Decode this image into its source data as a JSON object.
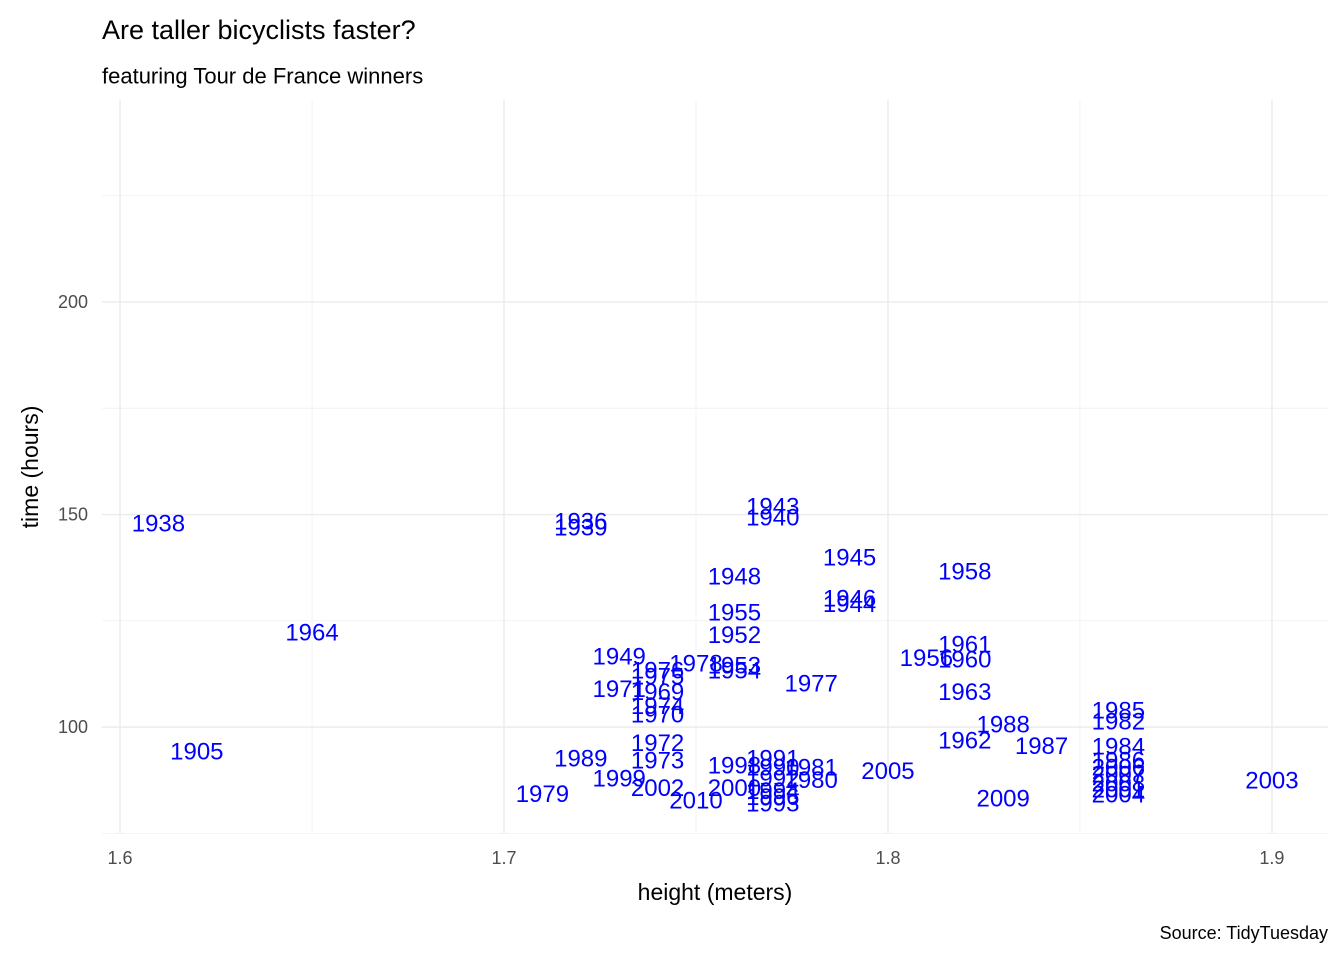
{
  "chart_data": {
    "type": "scatter",
    "title": "Are taller bicyclists faster?",
    "subtitle": "featuring Tour de France winners",
    "x_label": "height (meters)",
    "y_label": "time (hours)",
    "caption": "Source: TidyTuesday",
    "color": "#0000ff",
    "grid": true,
    "xlim": [
      1.5953,
      1.9146
    ],
    "ylim": [
      75.1,
      247.5
    ],
    "xticks": [
      {
        "value": 1.6,
        "label": "1.6"
      },
      {
        "value": 1.7,
        "label": "1.7"
      },
      {
        "value": 1.8,
        "label": "1.8"
      },
      {
        "value": 1.9,
        "label": "1.9"
      }
    ],
    "yticks": [
      100,
      150,
      200
    ],
    "x_minor_ticks": [
      1.65,
      1.75,
      1.85
    ],
    "y_minor_ticks": [
      75,
      125,
      175,
      225
    ],
    "labels": [
      "1938",
      "1905",
      "1964",
      "1936",
      "1939",
      "1943",
      "1940",
      "1945",
      "1948",
      "1958",
      "1946",
      "1944",
      "1955",
      "1952",
      "1961",
      "1956",
      "1960",
      "1949",
      "1978",
      "1953",
      "1954",
      "1976",
      "1975",
      "1977",
      "1971",
      "1969",
      "1963",
      "1974",
      "1970",
      "1985",
      "1982",
      "1988",
      "1987",
      "1962",
      "1972",
      "1984",
      "1989",
      "1973",
      "1991",
      "1986",
      "1998",
      "1981",
      "2005",
      "1990",
      "2006",
      "1999",
      "1980",
      "2003",
      "2007",
      "1992",
      "2002",
      "2000",
      "2008",
      "1979",
      "2001",
      "1994",
      "2009",
      "2004",
      "1996",
      "2010",
      "1993"
    ],
    "x": [
      1.61,
      1.62,
      1.65,
      1.72,
      1.72,
      1.77,
      1.77,
      1.79,
      1.76,
      1.82,
      1.79,
      1.79,
      1.76,
      1.76,
      1.82,
      1.81,
      1.82,
      1.73,
      1.75,
      1.76,
      1.76,
      1.74,
      1.74,
      1.78,
      1.73,
      1.74,
      1.82,
      1.74,
      1.74,
      1.86,
      1.86,
      1.83,
      1.84,
      1.82,
      1.74,
      1.86,
      1.72,
      1.74,
      1.77,
      1.86,
      1.76,
      1.78,
      1.8,
      1.77,
      1.86,
      1.73,
      1.78,
      1.9,
      1.86,
      1.77,
      1.74,
      1.76,
      1.86,
      1.71,
      1.86,
      1.77,
      1.83,
      1.86,
      1.77,
      1.75,
      1.77
    ],
    "y": [
      147.8,
      94.1,
      122.1,
      148.2,
      146.8,
      151.8,
      149.2,
      139.8,
      135.3,
      136.5,
      130.1,
      128.9,
      126.8,
      121.6,
      119.3,
      116.2,
      115.8,
      116.5,
      114.8,
      114.4,
      113.2,
      113.2,
      111.8,
      110.1,
      108.9,
      108.2,
      108.2,
      104.9,
      102.8,
      103.8,
      101.2,
      100.5,
      95.5,
      96.7,
      96.2,
      95.3,
      92.5,
      92.0,
      92.5,
      92.0,
      90.8,
      90.4,
      89.6,
      90.4,
      90.4,
      87.8,
      87.5,
      87.3,
      88.7,
      87.8,
      85.6,
      85.6,
      86.6,
      84.2,
      85.2,
      84.9,
      83.1,
      84.0,
      83.5,
      82.6,
      81.9
    ]
  }
}
